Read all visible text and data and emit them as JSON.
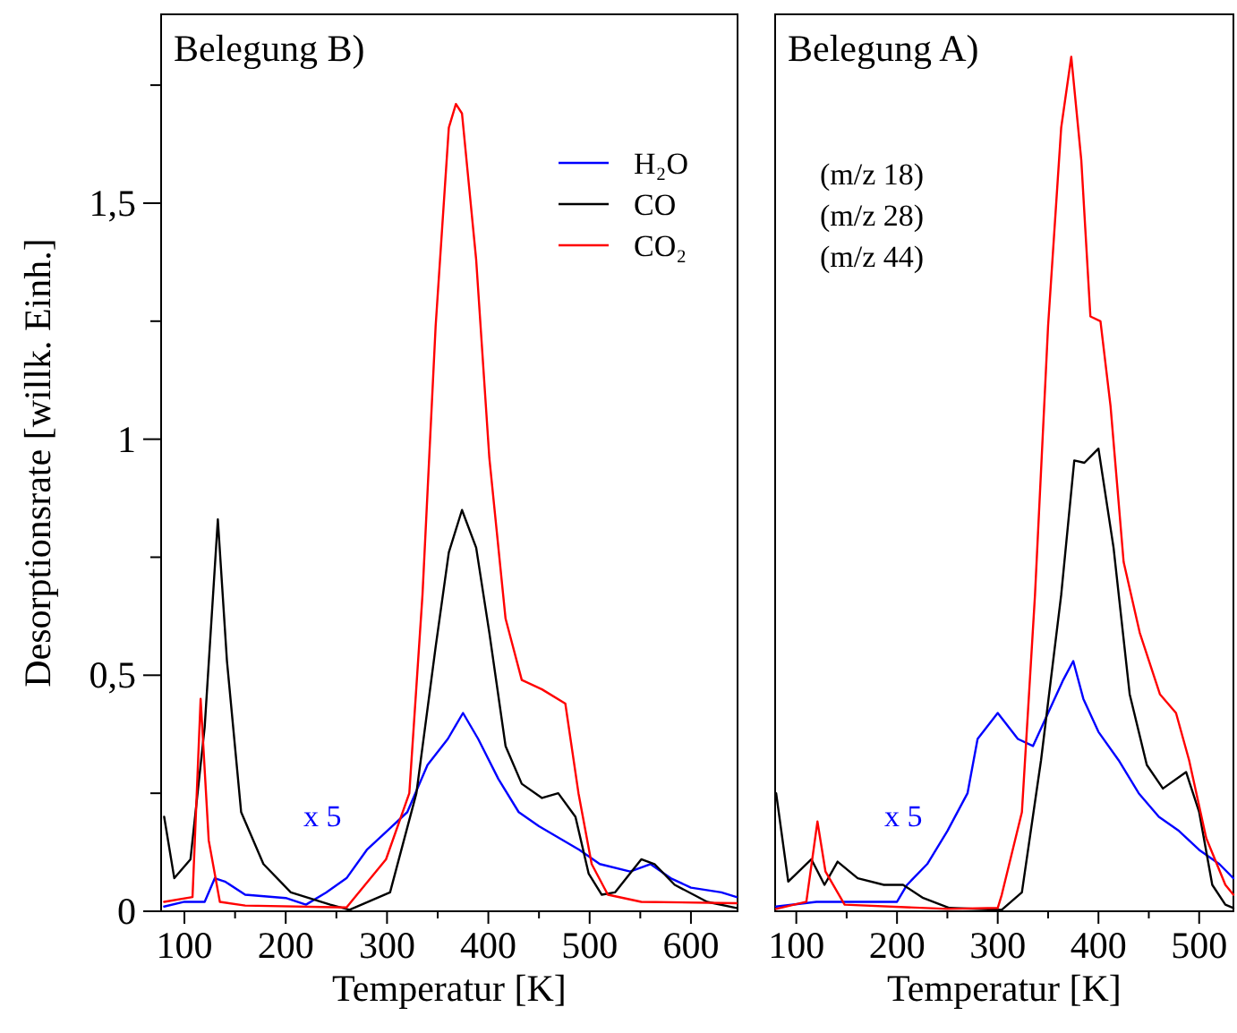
{
  "chart_data": [
    {
      "type": "line",
      "title": "Belegung B)",
      "xlabel": "Temperatur [K]",
      "ylabel": "Desorptionsrate [willk. Einh.]",
      "xlim": [
        77,
        646
      ],
      "ylim": [
        0,
        1.9
      ],
      "xticks": [
        100,
        {
          "value": 150,
          "label": null
        },
        200,
        {
          "value": 250,
          "label": null
        },
        300,
        {
          "value": 350,
          "label": null
        },
        400,
        {
          "value": 450,
          "label": null
        },
        500,
        {
          "value": 550,
          "label": null
        },
        600
      ],
      "yticks": [
        0,
        {
          "value": 0.25,
          "label": null
        },
        {
          "value": 0.5,
          "label": "0,5"
        },
        {
          "value": 0.75,
          "label": null
        },
        1,
        {
          "value": 1.25,
          "label": null
        },
        {
          "value": 1.5,
          "label": "1,5"
        },
        {
          "value": 1.75,
          "label": null
        }
      ],
      "legend": "top right",
      "grid": false,
      "annotations": [
        "x 5"
      ],
      "series": [
        {
          "name": "H₂O",
          "color": "#0000ff",
          "x": [
            80,
            100,
            120,
            130,
            140,
            160,
            200,
            220,
            240,
            260,
            280,
            300,
            320,
            340,
            360,
            375,
            390,
            410,
            430,
            450,
            470,
            490,
            510,
            540,
            560,
            580,
            600,
            630,
            645
          ],
          "values": [
            0.01,
            0.02,
            0.02,
            0.07,
            0.063,
            0.035,
            0.028,
            0.014,
            0.04,
            0.07,
            0.13,
            0.17,
            0.21,
            0.31,
            0.365,
            0.42,
            0.365,
            0.28,
            0.21,
            0.18,
            0.155,
            0.13,
            0.1,
            0.084,
            0.1,
            0.07,
            0.05,
            0.04,
            0.03
          ]
        },
        {
          "name": "CO",
          "color": "#000000",
          "x": [
            80,
            90,
            106,
            120,
            133,
            142,
            156,
            178,
            205,
            244,
            263,
            303,
            329,
            348,
            361,
            374,
            388,
            401,
            417,
            433,
            453,
            469,
            486,
            499,
            512,
            525,
            551,
            564,
            584,
            616,
            645
          ],
          "values": [
            0.2,
            0.07,
            0.11,
            0.39,
            0.83,
            0.53,
            0.21,
            0.1,
            0.04,
            0.014,
            0.003,
            0.04,
            0.25,
            0.56,
            0.76,
            0.85,
            0.77,
            0.59,
            0.35,
            0.27,
            0.24,
            0.25,
            0.2,
            0.08,
            0.035,
            0.04,
            0.11,
            0.1,
            0.056,
            0.02,
            0.007
          ]
        },
        {
          "name": "CO₂",
          "color": "#ff0000",
          "x": [
            80,
            108,
            116,
            124,
            135,
            160,
            260,
            299,
            322,
            335,
            348,
            361,
            368,
            374,
            388,
            401,
            417,
            433,
            453,
            476,
            489,
            502,
            518,
            551,
            645
          ],
          "values": [
            0.02,
            0.03,
            0.45,
            0.15,
            0.02,
            0.012,
            0.008,
            0.11,
            0.25,
            0.67,
            1.24,
            1.66,
            1.71,
            1.69,
            1.38,
            0.96,
            0.62,
            0.49,
            0.47,
            0.44,
            0.25,
            0.1,
            0.035,
            0.02,
            0.017
          ]
        }
      ]
    },
    {
      "type": "line",
      "title": "Belegung A)",
      "xlabel": "Temperatur [K]",
      "xlim": [
        79,
        534
      ],
      "ylim": [
        0,
        1.9
      ],
      "xticks": [
        100,
        {
          "value": 150,
          "label": null
        },
        200,
        {
          "value": 250,
          "label": null
        },
        300,
        {
          "value": 350,
          "label": null
        },
        400,
        {
          "value": 450,
          "label": null
        },
        500
      ],
      "tick_labels": "x",
      "legend": false,
      "grid": false,
      "annotations": [
        "(m/z 18)",
        "(m/z 28)",
        "(m/z 44)",
        "x 5"
      ],
      "series": [
        {
          "color": "#0000ff",
          "x": [
            80,
            120,
            200,
            210,
            230,
            250,
            270,
            280,
            300,
            320,
            335,
            350,
            365,
            375,
            385,
            400,
            420,
            440,
            460,
            480,
            500,
            520,
            534
          ],
          "values": [
            0.01,
            0.02,
            0.02,
            0.056,
            0.1,
            0.17,
            0.25,
            0.365,
            0.42,
            0.365,
            0.35,
            0.42,
            0.49,
            0.53,
            0.45,
            0.38,
            0.32,
            0.25,
            0.2,
            0.17,
            0.13,
            0.1,
            0.07
          ]
        },
        {
          "color": "#000000",
          "x": [
            80,
            92,
            115,
            128,
            141,
            161,
            187,
            206,
            226,
            252,
            304,
            324,
            343,
            363,
            376,
            386,
            400,
            415,
            431,
            448,
            464,
            487,
            500,
            513,
            526,
            534
          ],
          "values": [
            0.25,
            0.063,
            0.11,
            0.056,
            0.105,
            0.07,
            0.056,
            0.056,
            0.028,
            0.007,
            0.003,
            0.04,
            0.32,
            0.67,
            0.955,
            0.95,
            0.98,
            0.77,
            0.46,
            0.31,
            0.26,
            0.295,
            0.21,
            0.056,
            0.014,
            0.007
          ]
        },
        {
          "color": "#ff0000",
          "x": [
            80,
            110,
            121,
            129,
            148,
            250,
            300,
            304,
            324,
            337,
            350,
            363,
            373,
            383,
            392,
            402,
            412,
            425,
            441,
            461,
            477,
            490,
            507,
            526,
            534
          ],
          "values": [
            0.005,
            0.02,
            0.19,
            0.084,
            0.014,
            0.005,
            0.007,
            0.035,
            0.21,
            0.67,
            1.24,
            1.66,
            1.81,
            1.59,
            1.26,
            1.25,
            1.07,
            0.74,
            0.59,
            0.46,
            0.42,
            0.32,
            0.155,
            0.056,
            0.035
          ]
        }
      ]
    }
  ]
}
